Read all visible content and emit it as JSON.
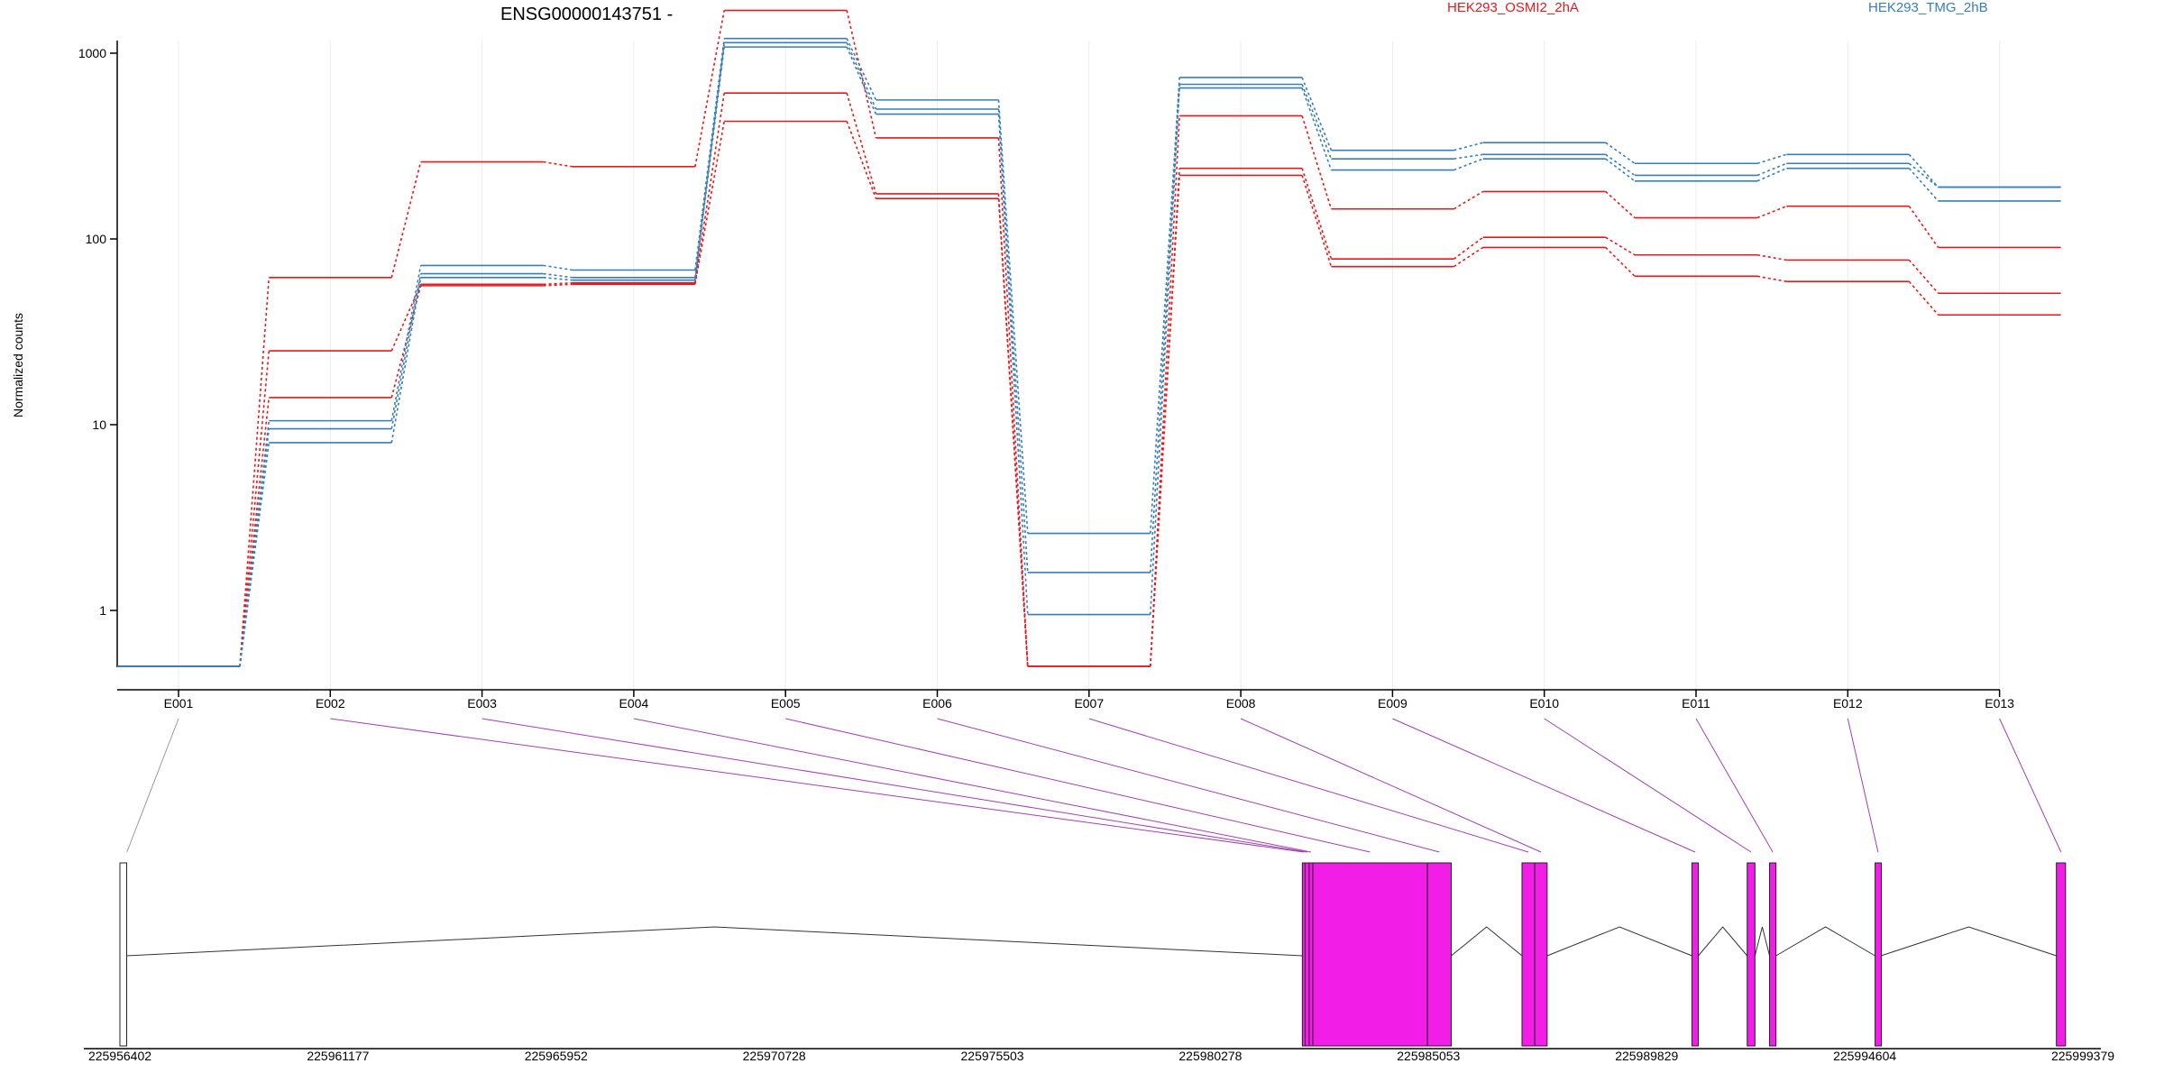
{
  "chart_data": {
    "type": "line",
    "title": "ENSG00000143751 -",
    "ylabel": "Normalized counts",
    "yscale": "log",
    "ylim": [
      0.5,
      2300
    ],
    "grid": "vertical",
    "y_ticks": [
      "1",
      "10",
      "100",
      "1000"
    ],
    "y_tick_values": [
      1,
      10,
      100,
      1000
    ],
    "categories": [
      "E001",
      "E002",
      "E003",
      "E004",
      "E005",
      "E006",
      "E007",
      "E008",
      "E009",
      "E010",
      "E011",
      "E012",
      "E013"
    ],
    "legend": [
      {
        "name": "HEK293_OSMI2_2hA",
        "color": "#e41a1c"
      },
      {
        "name": "HEK293_TMG_2hB",
        "color": "#377eb8"
      }
    ],
    "series": [
      {
        "group": 0,
        "values": [
          0.5,
          62,
          260,
          245,
          1700,
          350,
          0.5,
          460,
          145,
          180,
          130,
          150,
          90
        ]
      },
      {
        "group": 0,
        "values": [
          0.5,
          25,
          57,
          58,
          610,
          175,
          0.5,
          240,
          78,
          102,
          82,
          77,
          51
        ]
      },
      {
        "group": 0,
        "values": [
          0.5,
          14,
          56,
          57,
          430,
          165,
          0.5,
          220,
          71,
          90,
          63,
          59,
          39
        ]
      },
      {
        "group": 1,
        "values": [
          0.5,
          10.5,
          72,
          68,
          1200,
          560,
          2.6,
          740,
          300,
          330,
          255,
          285,
          190
        ]
      },
      {
        "group": 1,
        "values": [
          0.5,
          9.5,
          65,
          62,
          1140,
          500,
          1.6,
          680,
          270,
          285,
          220,
          255,
          190
        ]
      },
      {
        "group": 1,
        "values": [
          0.5,
          8,
          62,
          60,
          1080,
          470,
          0.95,
          650,
          235,
          270,
          205,
          240,
          160
        ]
      }
    ],
    "genome": {
      "coordinates": [
        "225956402",
        "225961177",
        "225965952",
        "225970728",
        "225975503",
        "225980278",
        "225985053",
        "225989829",
        "225994604",
        "225999379"
      ],
      "gene_start": 225956402,
      "gene_end": 225999379,
      "exon_colors": {
        "tested": "#f21ee8",
        "untested": "#ffffff"
      },
      "exons": [
        {
          "id": "E001",
          "start": 225956402,
          "end": 225956550,
          "tested": false
        },
        {
          "id": "E002",
          "start": 225982290,
          "end": 225982350,
          "tested": true
        },
        {
          "id": "E003",
          "start": 225982350,
          "end": 225982440,
          "tested": true
        },
        {
          "id": "E004",
          "start": 225982440,
          "end": 225982520,
          "tested": true
        },
        {
          "id": "E005",
          "start": 225982520,
          "end": 225985030,
          "tested": true
        },
        {
          "id": "E006",
          "start": 225985030,
          "end": 225985550,
          "tested": true
        },
        {
          "id": "E007",
          "start": 225987100,
          "end": 225987380,
          "tested": true
        },
        {
          "id": "E008",
          "start": 225987380,
          "end": 225987650,
          "tested": true
        },
        {
          "id": "E009",
          "start": 225990820,
          "end": 225990960,
          "tested": true
        },
        {
          "id": "E010",
          "start": 225992030,
          "end": 225992200,
          "tested": true
        },
        {
          "id": "E011",
          "start": 225992520,
          "end": 225992660,
          "tested": true
        },
        {
          "id": "E012",
          "start": 225994830,
          "end": 225994960,
          "tested": true
        },
        {
          "id": "E013",
          "start": 225998800,
          "end": 225999000,
          "tested": true
        }
      ]
    }
  }
}
